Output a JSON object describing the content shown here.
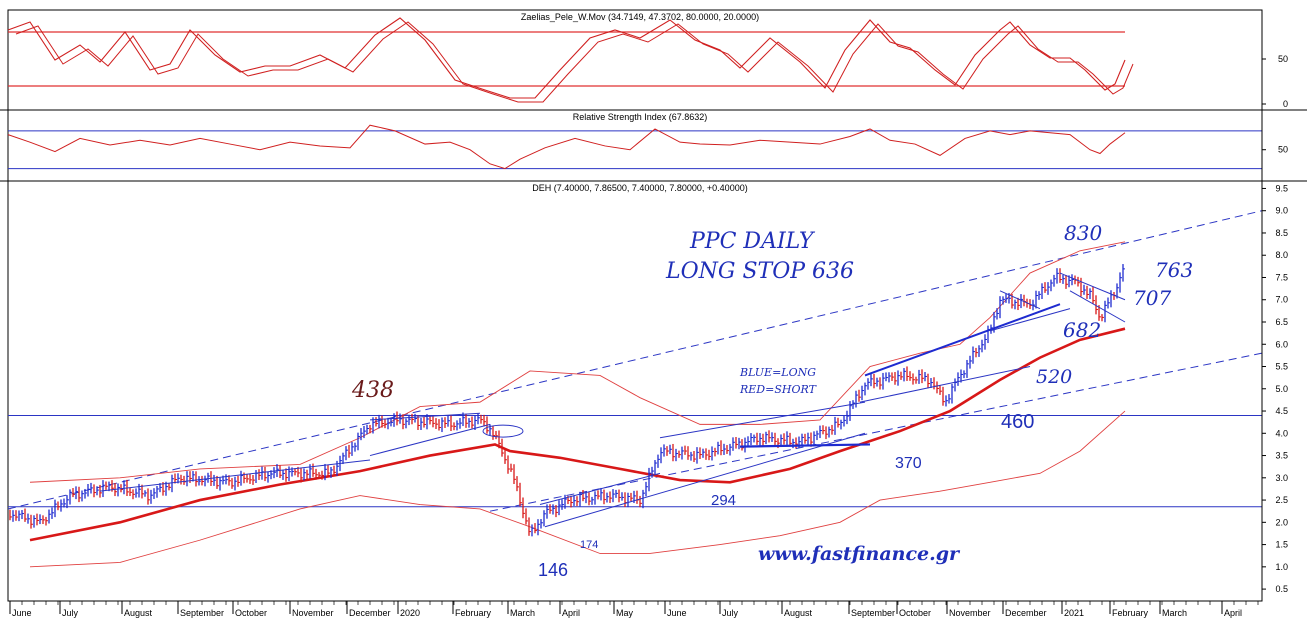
{
  "panels": {
    "stoch": {
      "title": "Zaelias_Pele_W.Mov (34.7149, 47.3702, 80.0000, 20.0000)",
      "ticks": [
        "50",
        "0"
      ],
      "levels": [
        80,
        20
      ]
    },
    "rsi": {
      "title": "Relative Strength Index (67.8632)",
      "ticks": [
        "50"
      ],
      "levels": [
        70,
        30
      ]
    },
    "price": {
      "title": "DEH (7.40000, 7.86500, 7.40000, 7.80000, +0.40000)",
      "ticks": [
        "9.5",
        "9.0",
        "8.5",
        "8.0",
        "7.5",
        "7.0",
        "6.5",
        "6.0",
        "5.5",
        "5.0",
        "4.5",
        "4.0",
        "3.5",
        "3.0",
        "2.5",
        "2.0",
        "1.5",
        "1.0",
        "0.5"
      ],
      "hlines": [
        4.4,
        2.35
      ]
    }
  },
  "x_labels": [
    "June",
    "July",
    "August",
    "September",
    "October",
    "November",
    "December",
    "2020",
    "February",
    "March",
    "April",
    "May",
    "June",
    "July",
    "August",
    "September",
    "October",
    "November",
    "December",
    "2021",
    "February",
    "March",
    "April"
  ],
  "annotations": {
    "title1": "PPC DAILY",
    "title2": "LONG STOP 636",
    "legend1": "BLUE=LONG",
    "legend2": "RED=SHORT",
    "site": "www.fastfinance.gr",
    "l830": "830",
    "l763": "763",
    "l707": "707",
    "l682": "682",
    "l520": "520",
    "l460": "460",
    "l438": "438",
    "l370": "370",
    "l294": "294",
    "l174": "174",
    "l146": "146"
  },
  "chart_data": {
    "type": "line",
    "x": [
      "2019-06",
      "2019-07",
      "2019-08",
      "2019-09",
      "2019-10",
      "2019-11",
      "2019-12",
      "2020-01",
      "2020-02",
      "2020-03",
      "2020-04",
      "2020-05",
      "2020-06",
      "2020-07",
      "2020-08",
      "2020-09",
      "2020-10",
      "2020-11",
      "2020-12",
      "2021-01",
      "2021-02"
    ],
    "series": [
      {
        "name": "DEH",
        "values": [
          2.2,
          2.5,
          2.8,
          3.0,
          3.0,
          3.1,
          4.3,
          4.3,
          4.2,
          1.9,
          2.5,
          2.6,
          3.7,
          3.7,
          3.8,
          5.2,
          5.0,
          6.0,
          7.2,
          7.5,
          7.8
        ]
      },
      {
        "name": "MA",
        "values": [
          1.6,
          1.9,
          2.2,
          2.6,
          2.9,
          3.1,
          3.3,
          3.5,
          3.7,
          3.4,
          3.3,
          3.1,
          2.9,
          3.0,
          3.2,
          3.6,
          4.2,
          4.8,
          5.5,
          6.0,
          6.4
        ]
      }
    ],
    "ylim": [
      0.3,
      9.6
    ],
    "stoch_levels": [
      80,
      20
    ],
    "rsi_value": 67.8632,
    "grid": false
  }
}
